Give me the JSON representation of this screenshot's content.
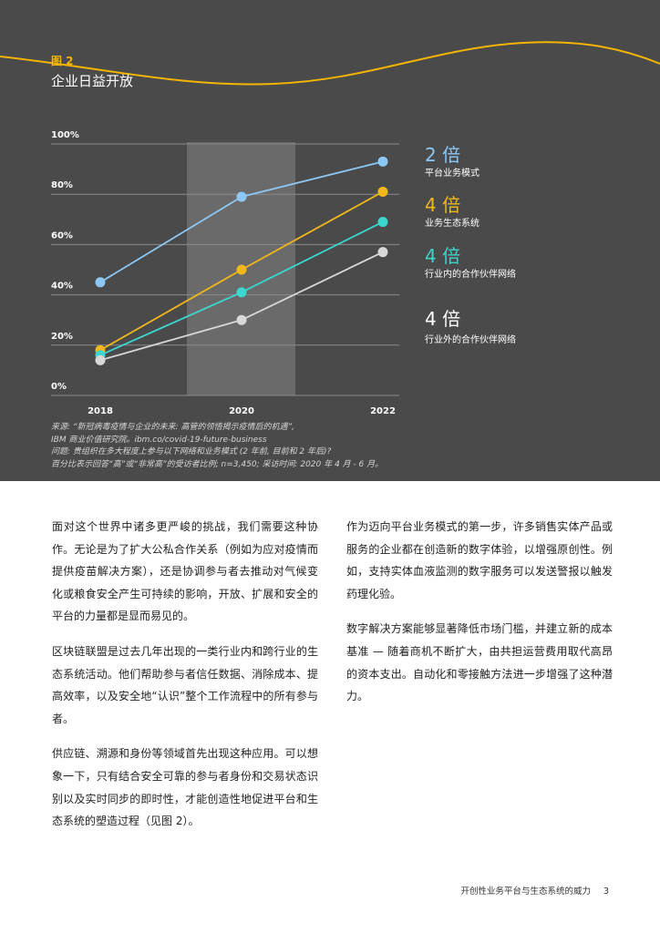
{
  "figure": {
    "label": "图 2",
    "title": "企业日益开放"
  },
  "chart_data": {
    "type": "line",
    "x": [
      "2018",
      "2020",
      "2022"
    ],
    "y_ticks": [
      "100%",
      "80%",
      "60%",
      "40%",
      "20%",
      "0%"
    ],
    "ylim": [
      0,
      100
    ],
    "grid": true,
    "highlight_band": "2020",
    "series": [
      {
        "name": "平台业务模式",
        "multiplier": "2 倍",
        "color": "#8cc8f5",
        "values": [
          45,
          79,
          93
        ]
      },
      {
        "name": "业务生态系统",
        "multiplier": "4 倍",
        "color": "#f0b81c",
        "values": [
          18,
          50,
          81
        ]
      },
      {
        "name": "行业内的合作伙伴网络",
        "multiplier": "4 倍",
        "color": "#3cd6cf",
        "values": [
          16,
          41,
          69
        ]
      },
      {
        "name": "行业外的合作伙伴网络",
        "multiplier": "4 倍",
        "color": "#d8d8d8",
        "values": [
          14,
          30,
          57
        ]
      }
    ],
    "legend_placement": "right"
  },
  "note_lines": [
    "来源: “新冠病毒疫情与企业的未来: 高管的领悟揭示疫情后的机遇”,",
    "IBM 商业价值研究院。ibm.co/covid-19-future-business",
    "问题: 贵组织在多大程度上参与以下网络和业务模式 (2 年前, 目前和 2 年后)?",
    "百分比表示回答“高”或“非常高”的受访者比例; n=3,450; 采访时间: 2020 年 4 月 - 6 月。"
  ],
  "body_left": [
    "面对这个世界中诸多更严峻的挑战，我们需要这种协作。无论是为了扩大公私合作关系（例如为应对疫情而提供疫苗解决方案），还是协调参与者去推动对气候变化或粮食安全产生可持续的影响，开放、扩展和安全的平台的力量都是显而易见的。",
    "区块链联盟是过去几年出现的一类行业内和跨行业的生态系统活动。他们帮助参与者信任数据、消除成本、提高效率，以及安全地“认识”整个工作流程中的所有参与者。",
    "供应链、溯源和身份等领域首先出现这种应用。可以想象一下，只有结合安全可靠的参与者身份和交易状态识别以及实时同步的即时性，才能创造性地促进平台和生态系统的塑造过程（见图 2）。"
  ],
  "body_right": [
    "作为迈向平台业务模式的第一步，许多销售实体产品或服务的企业都在创造新的数字体验，以增强原创性。例如，支持实体血液监测的数字服务可以发送警报以触发药理化验。",
    "数字解决方案能够显著降低市场门槛，并建立新的成本基准 — 随着商机不断扩大，由共担运营费用取代高昂的资本支出。自动化和零接触方法进一步增强了这种潜力。"
  ],
  "footer": {
    "title": "开创性业务平台与生态系统的威力",
    "page": "3"
  },
  "colors": {
    "panel": "#4a4a4a",
    "accent": "#f2b400",
    "band": "#6a6a6a",
    "grid": "#8a8a8a"
  }
}
